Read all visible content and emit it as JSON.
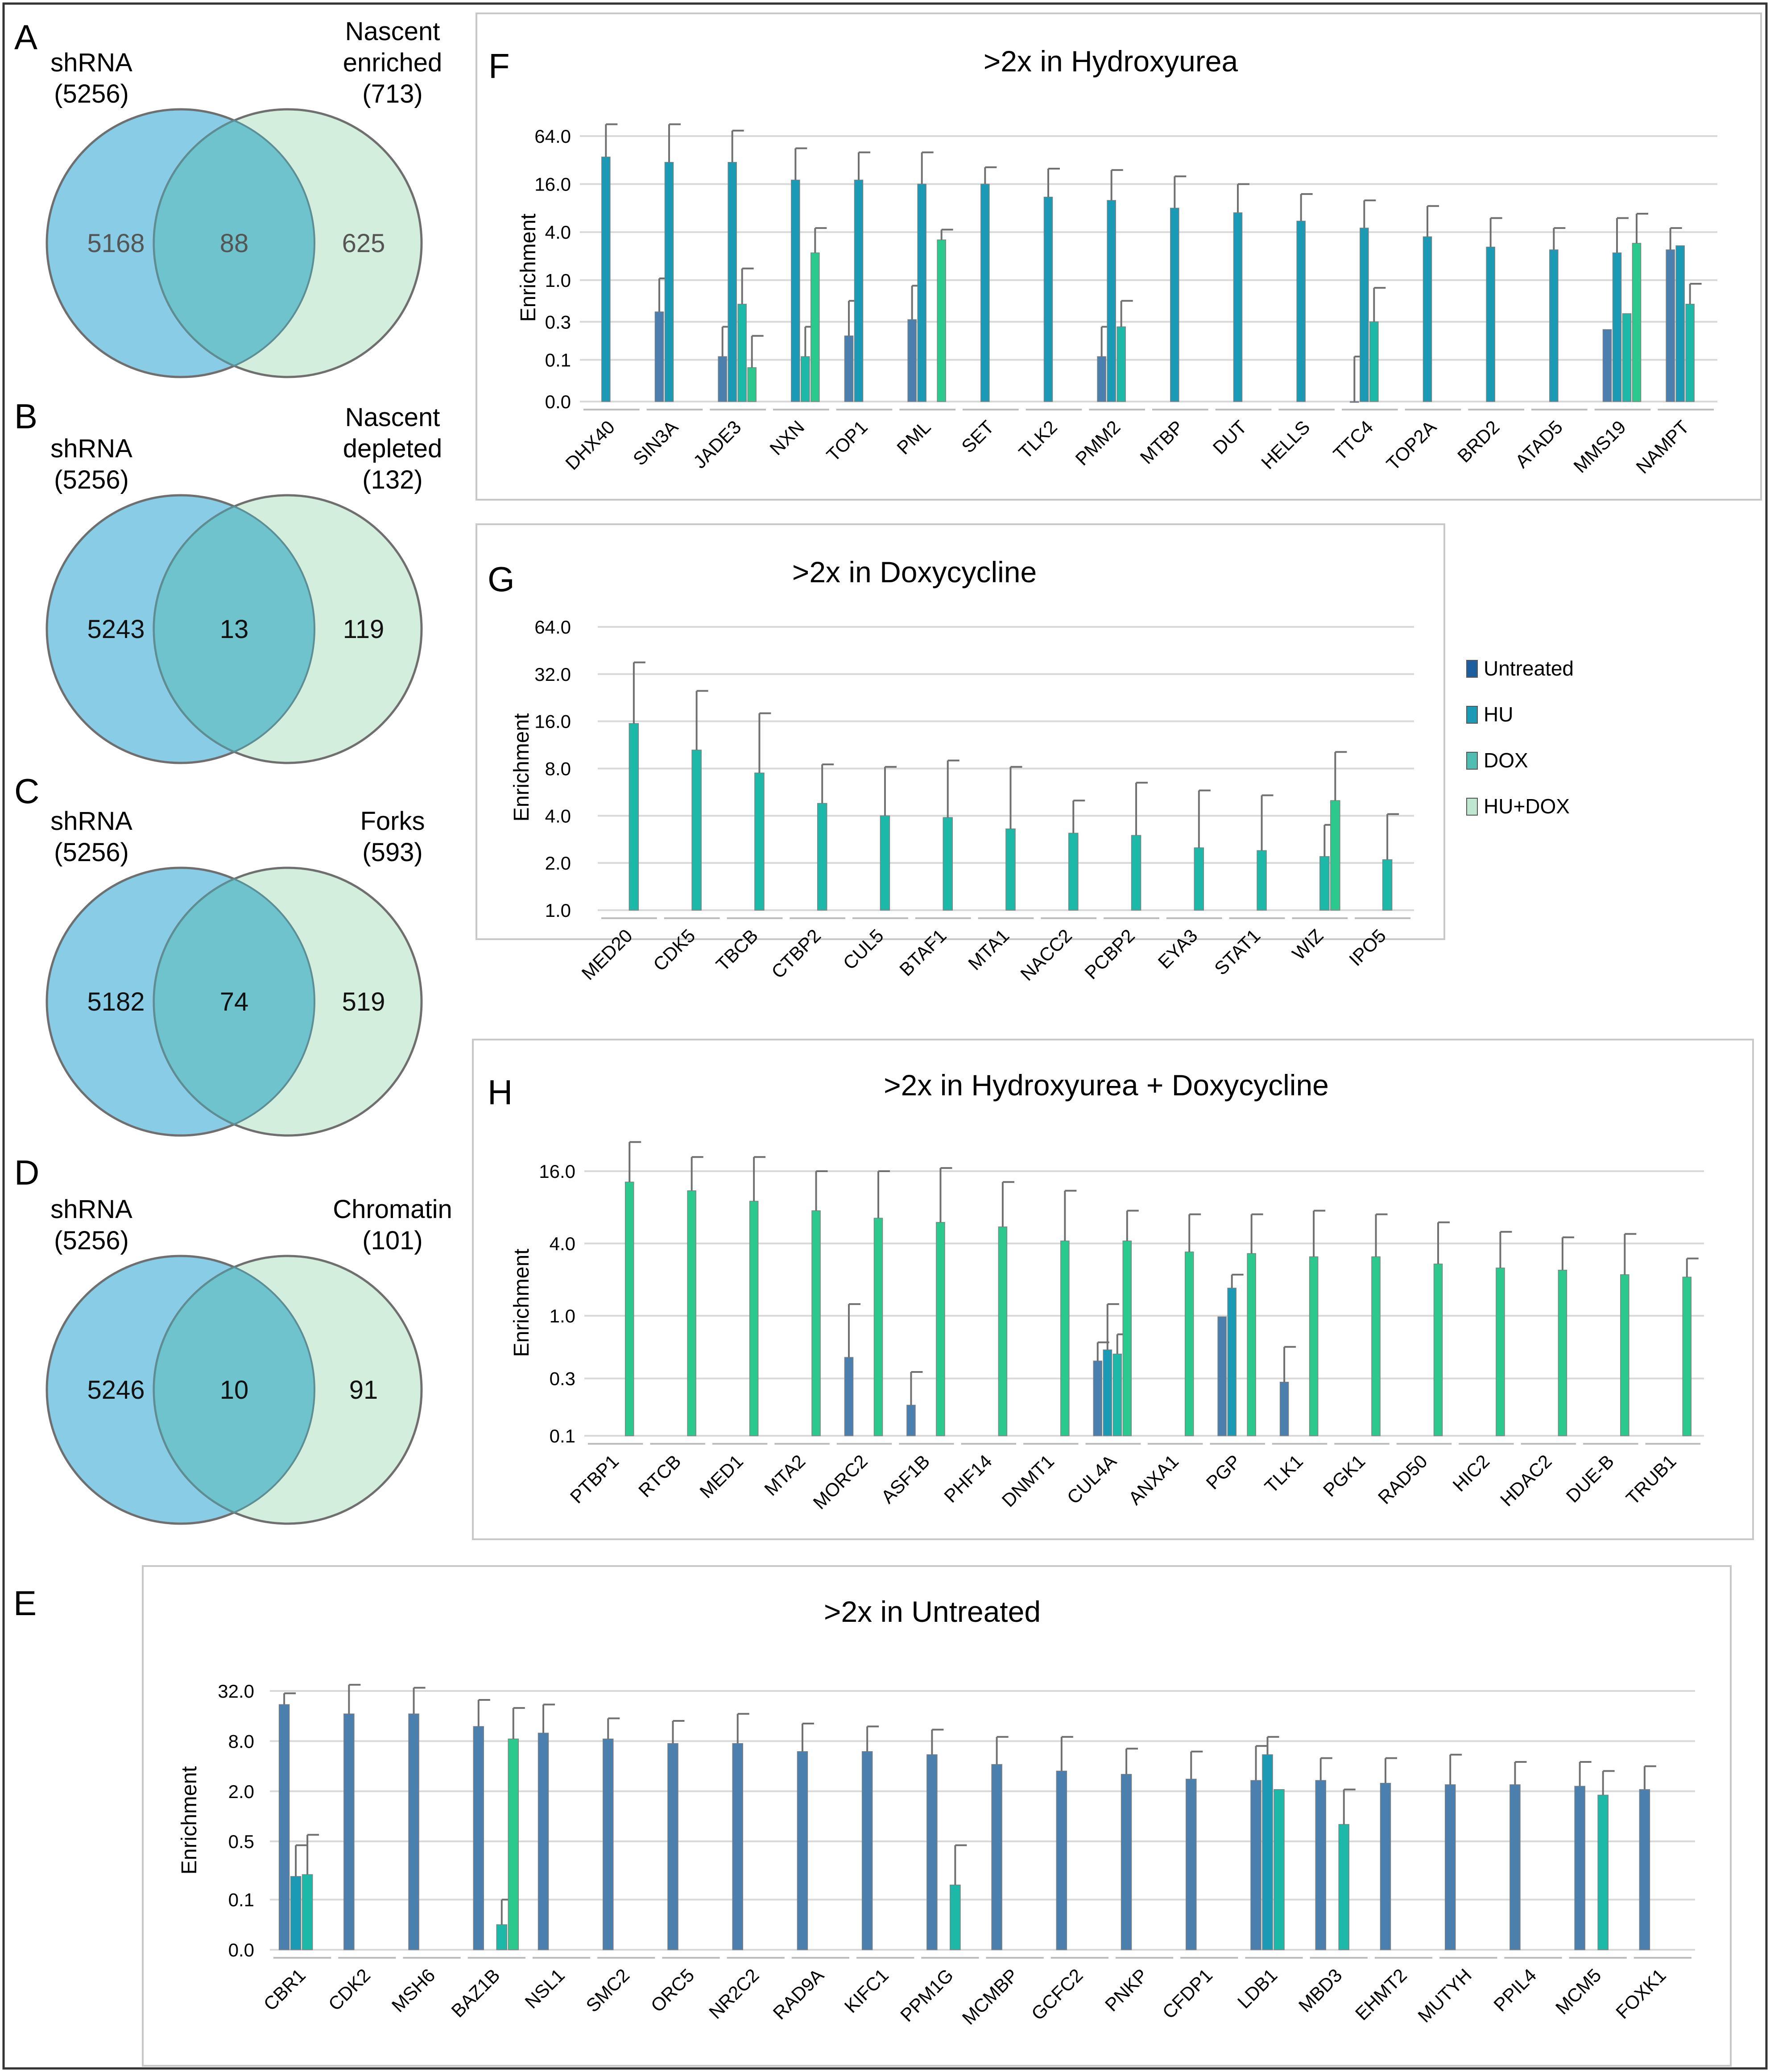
{
  "colors": {
    "untreated": "#4A7FAE",
    "hu": "#1A9AB5",
    "dox": "#1CB8A8",
    "hudox": "#2BC98E",
    "venn_left": "#88CCE6",
    "venn_right": "#D4EEDD",
    "venn_overlap": "#6EC3CC",
    "errorbar": "#707070",
    "grid": "#D9D9D9",
    "panel_border": "#C8C8C8"
  },
  "legend": {
    "items": [
      {
        "label": "Untreated",
        "color": "#1D5F9E"
      },
      {
        "label": "HU",
        "color": "#1A9AB5"
      },
      {
        "label": "DOX",
        "color": "#4FBDB2"
      },
      {
        "label": "HU+DOX",
        "color": "#BFE6CE"
      }
    ]
  },
  "venns": [
    {
      "letter": "A",
      "left_label": "shRNA",
      "left_count": "(5256)",
      "right_label": [
        "Nascent",
        "enriched"
      ],
      "right_count": "(713)",
      "left_only": "5168",
      "overlap": "88",
      "right_only": "625"
    },
    {
      "letter": "B",
      "left_label": "shRNA",
      "left_count": "(5256)",
      "right_label": [
        "Nascent",
        "depleted"
      ],
      "right_count": "(132)",
      "left_only": "5243",
      "overlap": "13",
      "right_only": "119"
    },
    {
      "letter": "C",
      "left_label": "shRNA",
      "left_count": "(5256)",
      "right_label": [
        "Forks"
      ],
      "right_count": "(593)",
      "left_only": "5182",
      "overlap": "74",
      "right_only": "519"
    },
    {
      "letter": "D",
      "left_label": "shRNA",
      "left_count": "(5256)",
      "right_label": [
        "Chromatin"
      ],
      "right_count": "(101)",
      "left_only": "5246",
      "overlap": "10",
      "right_only": "91"
    }
  ],
  "chart_data": [
    {
      "panel": "F",
      "type": "bar",
      "title": ">2x in Hydroxyurea",
      "ylabel": "Enrichment",
      "yscale": "log",
      "yticks": [
        "0.0",
        "0.1",
        "0.3",
        "1.0",
        "4.0",
        "16.0",
        "64.0"
      ],
      "ytick_values": [
        0.03,
        0.1,
        0.3,
        1.0,
        4.0,
        16.0,
        64.0
      ],
      "series_names": [
        "Untreated",
        "HU",
        "DOX",
        "HU+DOX"
      ],
      "categories": [
        "DHX40",
        "SIN3A",
        "JADE3",
        "NXN",
        "TOP1",
        "PML",
        "SET",
        "TLK2",
        "PMM2",
        "MTBP",
        "DUT",
        "HELLS",
        "TTC4",
        "TOP2A",
        "BRD2",
        "ATAD5",
        "MMS19",
        "NAMPT"
      ],
      "values": [
        [
          null,
          35,
          null,
          null
        ],
        [
          0.4,
          30,
          null,
          null
        ],
        [
          0.11,
          30,
          0.5,
          0.08
        ],
        [
          null,
          18,
          0.11,
          2.2
        ],
        [
          0.2,
          18,
          null,
          null
        ],
        [
          0.32,
          16,
          null,
          3.2
        ],
        [
          null,
          16,
          null,
          null
        ],
        [
          null,
          11,
          null,
          null
        ],
        [
          0.11,
          10,
          0.26,
          null
        ],
        [
          null,
          8,
          null,
          null
        ],
        [
          null,
          7,
          null,
          null
        ],
        [
          null,
          5.5,
          null,
          null
        ],
        [
          0.03,
          4.5,
          0.3,
          null
        ],
        [
          null,
          3.5,
          null,
          null
        ],
        [
          null,
          2.6,
          null,
          null
        ],
        [
          null,
          2.4,
          null,
          null
        ],
        [
          0.24,
          2.2,
          0.38,
          2.9
        ],
        [
          2.4,
          2.7,
          0.5,
          null
        ]
      ],
      "errors": [
        [
          null,
          90,
          null,
          null
        ],
        [
          1.05,
          90,
          null,
          null
        ],
        [
          0.26,
          75,
          1.4,
          0.2
        ],
        [
          null,
          45,
          0.26,
          4.5
        ],
        [
          0.55,
          40,
          null,
          null
        ],
        [
          0.85,
          40,
          null,
          4.3
        ],
        [
          null,
          26,
          null,
          null
        ],
        [
          null,
          25,
          null,
          null
        ],
        [
          0.26,
          24,
          0.55,
          null
        ],
        [
          null,
          20,
          null,
          null
        ],
        [
          null,
          16,
          null,
          null
        ],
        [
          null,
          12,
          null,
          null
        ],
        [
          0.11,
          10,
          0.8,
          null
        ],
        [
          null,
          8.5,
          null,
          null
        ],
        [
          null,
          6,
          null,
          null
        ],
        [
          null,
          4.5,
          null,
          null
        ],
        [
          null,
          6,
          null,
          6.8
        ],
        [
          4.5,
          null,
          0.9,
          null
        ]
      ]
    },
    {
      "panel": "G",
      "type": "bar",
      "title": ">2x in Doxycycline",
      "ylabel": "Enrichment",
      "yscale": "log",
      "yticks": [
        "1.0",
        "2.0",
        "4.0",
        "8.0",
        "16.0",
        "32.0",
        "64.0"
      ],
      "ytick_values": [
        1,
        2,
        4,
        8,
        16,
        32,
        64
      ],
      "series_names": [
        "Untreated",
        "HU",
        "DOX",
        "HU+DOX"
      ],
      "categories": [
        "MED20",
        "CDK5",
        "TBCB",
        "CTBP2",
        "CUL5",
        "BTAF1",
        "MTA1",
        "NACC2",
        "PCBP2",
        "EYA3",
        "STAT1",
        "WIZ",
        "IPO5"
      ],
      "values": [
        [
          null,
          null,
          15.5,
          null
        ],
        [
          null,
          null,
          10.5,
          null
        ],
        [
          null,
          null,
          7.5,
          null
        ],
        [
          null,
          null,
          4.8,
          null
        ],
        [
          null,
          null,
          4.0,
          null
        ],
        [
          null,
          null,
          3.9,
          null
        ],
        [
          null,
          null,
          3.3,
          null
        ],
        [
          null,
          null,
          3.1,
          null
        ],
        [
          null,
          null,
          3.0,
          null
        ],
        [
          null,
          null,
          2.5,
          null
        ],
        [
          null,
          null,
          2.4,
          null
        ],
        [
          null,
          null,
          2.2,
          5.0
        ],
        [
          null,
          null,
          2.1,
          null
        ]
      ],
      "errors": [
        [
          null,
          null,
          38,
          null
        ],
        [
          null,
          null,
          25,
          null
        ],
        [
          null,
          null,
          18,
          null
        ],
        [
          null,
          null,
          8.5,
          null
        ],
        [
          null,
          null,
          8.2,
          null
        ],
        [
          null,
          null,
          9.0,
          null
        ],
        [
          null,
          null,
          8.2,
          null
        ],
        [
          null,
          null,
          5.0,
          null
        ],
        [
          null,
          null,
          6.5,
          null
        ],
        [
          null,
          null,
          5.8,
          null
        ],
        [
          null,
          null,
          5.4,
          null
        ],
        [
          null,
          null,
          3.5,
          10.2
        ],
        [
          null,
          null,
          4.1,
          null
        ]
      ]
    },
    {
      "panel": "H",
      "type": "bar",
      "title": ">2x in Hydroxyurea + Doxycycline",
      "ylabel": "Enrichment",
      "yscale": "log",
      "yticks": [
        "0.1",
        "0.3",
        "1.0",
        "4.0",
        "16.0"
      ],
      "ytick_values": [
        0.1,
        0.3,
        1.0,
        4.0,
        16.0
      ],
      "series_names": [
        "Untreated",
        "HU",
        "DOX",
        "HU+DOX"
      ],
      "categories": [
        "PTBP1",
        "RTCB",
        "MED1",
        "MTA2",
        "MORC2",
        "ASF1B",
        "PHF14",
        "DNMT1",
        "CUL4A",
        "ANXA1",
        "PGP",
        "TLK1",
        "PGK1",
        "RAD50",
        "HIC2",
        "HDAC2",
        "DUE-B",
        "TRUB1"
      ],
      "values": [
        [
          null,
          null,
          null,
          13
        ],
        [
          null,
          null,
          null,
          11
        ],
        [
          null,
          null,
          null,
          9
        ],
        [
          null,
          null,
          null,
          7.5
        ],
        [
          0.45,
          null,
          null,
          6.5
        ],
        [
          0.18,
          null,
          null,
          6
        ],
        [
          null,
          null,
          null,
          5.5
        ],
        [
          null,
          null,
          null,
          4.2
        ],
        [
          0.42,
          0.52,
          0.48,
          4.2
        ],
        [
          null,
          null,
          null,
          3.4
        ],
        [
          0.98,
          1.7,
          null,
          3.3
        ],
        [
          0.28,
          null,
          null,
          3.1
        ],
        [
          null,
          null,
          null,
          3.1
        ],
        [
          null,
          null,
          null,
          2.7
        ],
        [
          null,
          null,
          null,
          2.5
        ],
        [
          null,
          null,
          null,
          2.4
        ],
        [
          null,
          null,
          null,
          2.2
        ],
        [
          null,
          null,
          null,
          2.1
        ]
      ],
      "errors": [
        [
          null,
          null,
          null,
          28
        ],
        [
          null,
          null,
          null,
          21
        ],
        [
          null,
          null,
          null,
          21
        ],
        [
          null,
          null,
          null,
          16
        ],
        [
          1.25,
          null,
          null,
          16
        ],
        [
          0.34,
          null,
          null,
          17
        ],
        [
          null,
          null,
          null,
          13
        ],
        [
          null,
          null,
          null,
          11
        ],
        [
          0.6,
          1.25,
          0.7,
          7.5
        ],
        [
          null,
          null,
          null,
          7
        ],
        [
          null,
          2.2,
          null,
          7
        ],
        [
          0.55,
          null,
          null,
          7.5
        ],
        [
          null,
          null,
          null,
          7
        ],
        [
          null,
          null,
          null,
          6
        ],
        [
          null,
          null,
          null,
          5
        ],
        [
          null,
          null,
          null,
          4.5
        ],
        [
          null,
          null,
          null,
          4.8
        ],
        [
          null,
          null,
          null,
          3
        ]
      ]
    },
    {
      "panel": "E",
      "type": "bar",
      "title": ">2x in Untreated",
      "ylabel": "Enrichment",
      "yscale": "log",
      "yticks": [
        "0.0",
        "0.1",
        "0.5",
        "2.0",
        "8.0",
        "32.0"
      ],
      "ytick_values": [
        0.025,
        0.1,
        0.5,
        2.0,
        8.0,
        32.0
      ],
      "series_names": [
        "Untreated",
        "HU",
        "DOX",
        "HU+DOX"
      ],
      "categories": [
        "CBR1",
        "CDK2",
        "MSH6",
        "BAZ1B",
        "NSL1",
        "SMC2",
        "ORC5",
        "NR2C2",
        "RAD9A",
        "KIFC1",
        "PPM1G",
        "MCMBP",
        "GCFC2",
        "PNKP",
        "CFDP1",
        "LDB1",
        "MBD3",
        "EHMT2",
        "MUTYH",
        "PPIL4",
        "MCM5",
        "FOXK1"
      ],
      "values": [
        [
          22,
          0.19,
          0.2,
          null
        ],
        [
          17,
          null,
          null,
          null
        ],
        [
          17,
          null,
          null,
          null
        ],
        [
          12,
          null,
          0.05,
          8.5
        ],
        [
          10,
          null,
          null,
          null
        ],
        [
          8.5,
          null,
          null,
          null
        ],
        [
          7.5,
          null,
          null,
          null
        ],
        [
          7.5,
          null,
          null,
          null
        ],
        [
          6,
          null,
          null,
          null
        ],
        [
          6,
          null,
          null,
          null
        ],
        [
          5.5,
          null,
          0.15,
          null
        ],
        [
          4.2,
          null,
          null,
          null
        ],
        [
          3.5,
          null,
          null,
          null
        ],
        [
          3.2,
          null,
          null,
          null
        ],
        [
          2.8,
          null,
          null,
          null
        ],
        [
          2.7,
          5.5,
          2.1,
          null
        ],
        [
          2.7,
          null,
          0.8,
          null
        ],
        [
          2.5,
          null,
          null,
          null
        ],
        [
          2.4,
          null,
          null,
          null
        ],
        [
          2.4,
          null,
          null,
          null
        ],
        [
          2.3,
          null,
          1.8,
          null
        ],
        [
          2.1,
          null,
          null,
          null
        ]
      ],
      "errors": [
        [
          30,
          0.45,
          0.6,
          null
        ],
        [
          38,
          null,
          null,
          null
        ],
        [
          35,
          null,
          null,
          null
        ],
        [
          25,
          null,
          0.1,
          20
        ],
        [
          22,
          null,
          null,
          null
        ],
        [
          15,
          null,
          null,
          null
        ],
        [
          14,
          null,
          null,
          null
        ],
        [
          17,
          null,
          null,
          null
        ],
        [
          13,
          null,
          null,
          null
        ],
        [
          12,
          null,
          null,
          null
        ],
        [
          11,
          null,
          0.45,
          null
        ],
        [
          9,
          null,
          null,
          null
        ],
        [
          9,
          null,
          null,
          null
        ],
        [
          6.5,
          null,
          null,
          null
        ],
        [
          6,
          null,
          null,
          null
        ],
        [
          7,
          9,
          null,
          null
        ],
        [
          5,
          null,
          2.1,
          null
        ],
        [
          5,
          null,
          null,
          null
        ],
        [
          5.5,
          null,
          null,
          null
        ],
        [
          4.5,
          null,
          null,
          null
        ],
        [
          4.5,
          null,
          3.5,
          null
        ],
        [
          4,
          null,
          null,
          null
        ]
      ]
    }
  ]
}
